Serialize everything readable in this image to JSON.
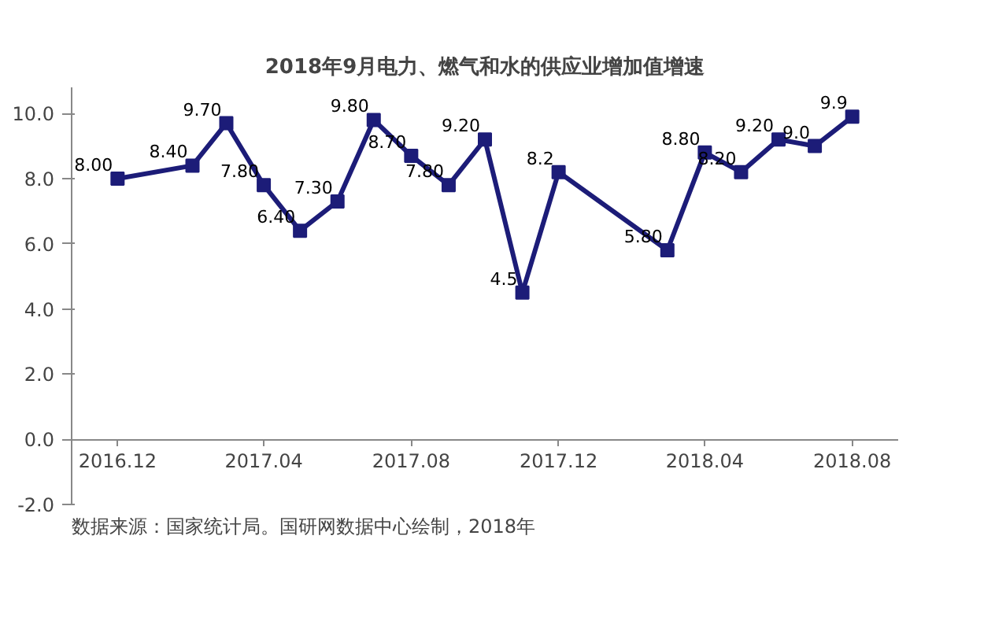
{
  "chart_data": {
    "type": "line",
    "title": "2018年9月电力、燃气和水的供应业增加值增速",
    "x": [
      "2016-12",
      "2017-02",
      "2017-03",
      "2017-04",
      "2017-05",
      "2017-06",
      "2017-07",
      "2017-08",
      "2017-09",
      "2017-10",
      "2017-11",
      "2017-12",
      "2018-03",
      "2018-04",
      "2018-05",
      "2018-06",
      "2018-07",
      "2018-08"
    ],
    "series": [
      {
        "color": "#1c1c78",
        "values": [
          8.0,
          8.4,
          9.7,
          7.8,
          6.4,
          7.3,
          9.8,
          8.7,
          7.8,
          9.2,
          4.5,
          8.2,
          5.8,
          8.8,
          8.2,
          9.2,
          9.0,
          9.9
        ],
        "value_labels": [
          "8.00",
          "8.40",
          "9.70",
          "7.80",
          "6.40",
          "7.30",
          "9.80",
          "8.70",
          "7.80",
          "9.20",
          "4.5",
          "8.2",
          "5.80",
          "8.80",
          "8.20",
          "9.20",
          "9.0",
          "9.9"
        ]
      }
    ],
    "marker": "square",
    "line_style": "solid",
    "xlim": [
      "2016-10-24",
      "2018-09-08"
    ],
    "xticks": [
      {
        "value": "2016-12",
        "label": "2016.12"
      },
      {
        "value": "2017-04",
        "label": "2017.04"
      },
      {
        "value": "2017-08",
        "label": "2017.08"
      },
      {
        "value": "2017-12",
        "label": "2017.12"
      },
      {
        "value": "2018-04",
        "label": "2018.04"
      },
      {
        "value": "2018-08",
        "label": "2018.08"
      }
    ],
    "ylim": [
      -2,
      10.8
    ],
    "yticks": [
      {
        "value": -2,
        "label": "-2.0"
      },
      {
        "value": 0,
        "label": "0.0"
      },
      {
        "value": 2,
        "label": "2.0"
      },
      {
        "value": 4,
        "label": "4.0"
      },
      {
        "value": 6,
        "label": "6.0"
      },
      {
        "value": 8,
        "label": "8.0"
      },
      {
        "value": 10,
        "label": "10.0"
      }
    ],
    "annotations": [
      "数据来源：国家统计局。国研网数据中心绘制，2018年"
    ]
  }
}
